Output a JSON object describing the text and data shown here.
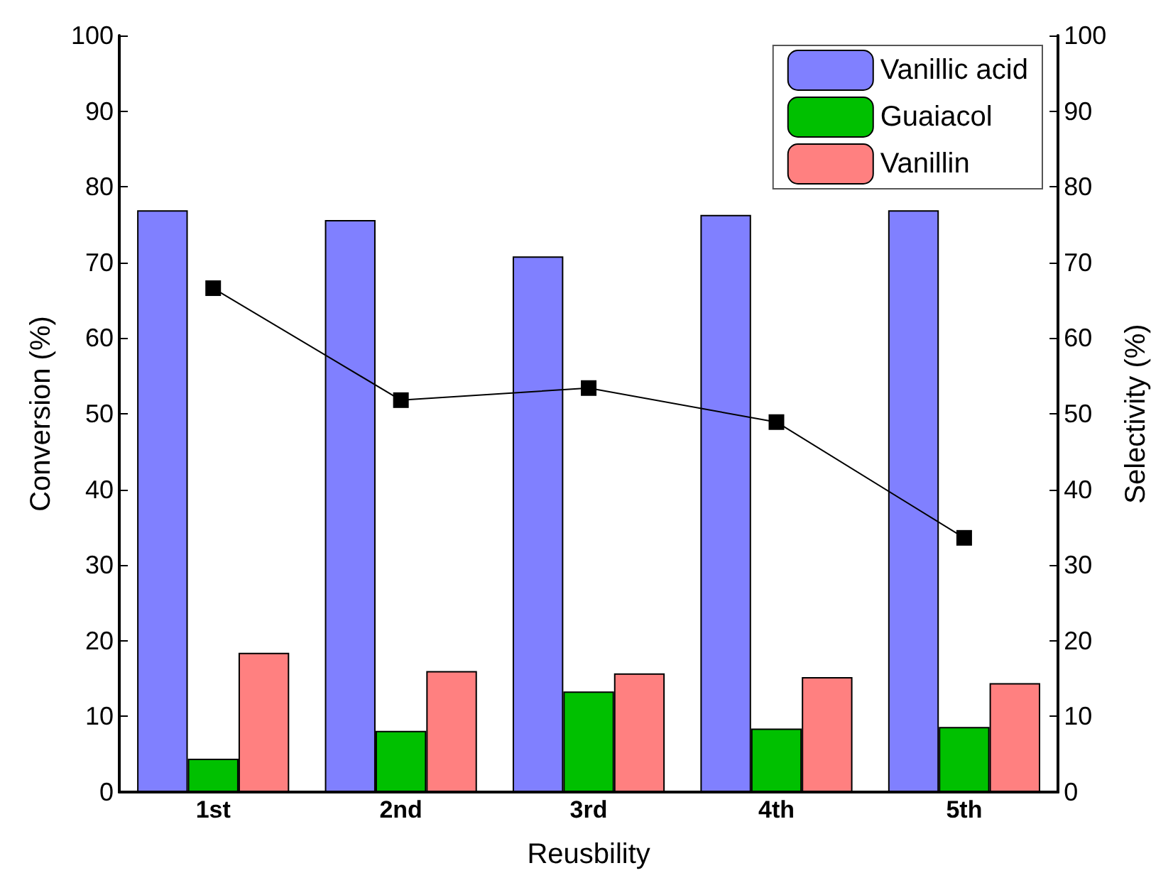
{
  "chart_data": {
    "type": "bar",
    "xlabel": "Reusbility",
    "ylabel": "Conversion (%)",
    "y2label": "Selectivity (%)",
    "categories": [
      "1st",
      "2nd",
      "3rd",
      "4th",
      "5th"
    ],
    "series": [
      {
        "name": "Vanillic acid",
        "color": "#8080ff",
        "values": [
          76.9,
          75.6,
          70.8,
          76.3,
          76.9
        ]
      },
      {
        "name": "Guaiacol",
        "color": "#00c000",
        "values": [
          4.4,
          8.1,
          13.3,
          8.4,
          8.6
        ]
      },
      {
        "name": "Vanillin",
        "color": "#ff8080",
        "values": [
          18.4,
          16.0,
          15.7,
          15.2,
          14.4
        ]
      },
      {
        "type": "line",
        "color": "#000000",
        "marker": "square",
        "line_style": "solid",
        "values": [
          66.6,
          51.8,
          53.4,
          48.9,
          33.6
        ]
      }
    ],
    "ylim": [
      0,
      100
    ],
    "yticks": [
      0,
      10,
      20,
      30,
      40,
      50,
      60,
      70,
      80,
      90,
      100
    ],
    "y2lim": [
      0,
      100
    ],
    "y2ticks": [
      0,
      10,
      20,
      30,
      40,
      50,
      60,
      70,
      80,
      90,
      100
    ],
    "grid": false,
    "legend": "top right"
  }
}
